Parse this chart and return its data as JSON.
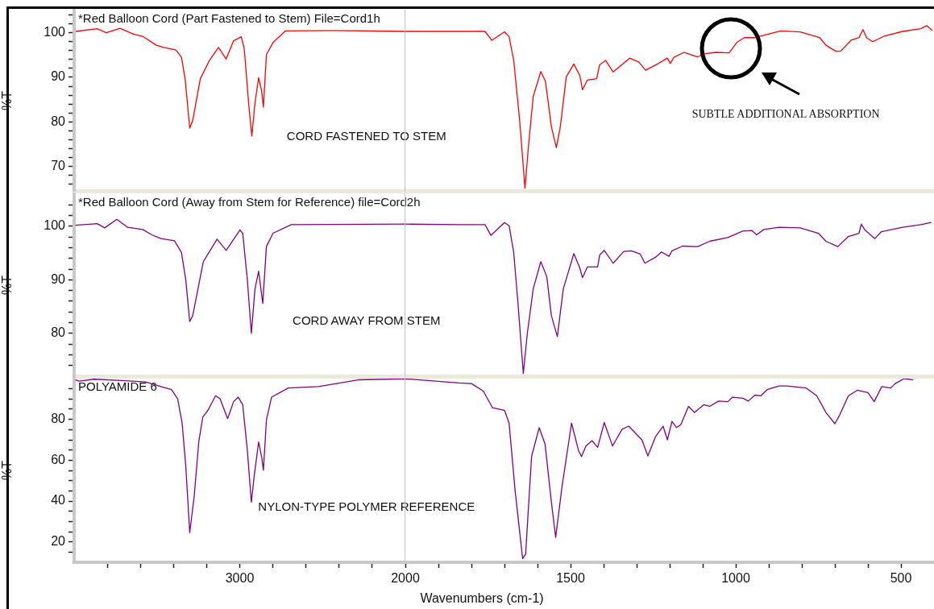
{
  "chart_data": [
    {
      "type": "line",
      "ylabel": "%T",
      "xlim": [
        4000,
        2000
      ],
      "tick_labels": "y",
      "ylim": [
        64.5,
        105
      ],
      "yticks": [
        {
          "value": 66,
          "label": null
        },
        {
          "value": 68,
          "label": null
        },
        70,
        {
          "value": 72,
          "label": null
        },
        {
          "value": 74,
          "label": null
        },
        {
          "value": 76,
          "label": null
        },
        {
          "value": 78,
          "label": null
        },
        80,
        {
          "value": 82,
          "label": null
        },
        {
          "value": 84,
          "label": null
        },
        {
          "value": 86,
          "label": null
        },
        {
          "value": 88,
          "label": null
        },
        90,
        {
          "value": 92,
          "label": null
        },
        {
          "value": 94,
          "label": null
        },
        {
          "value": 96,
          "label": null
        },
        {
          "value": 98,
          "label": null
        },
        100,
        {
          "value": 102,
          "label": null
        },
        {
          "value": 104,
          "label": null
        }
      ],
      "annotations": [
        "*Red Balloon Cord (Part Fastened to Stem) File=Cord1h",
        "CORD FASTENED TO STEM"
      ],
      "series": [
        {
          "color": "#ff0000",
          "x": [
            3990,
            3861,
            3806,
            3723,
            3641,
            3586,
            3504,
            3458,
            3385,
            3352,
            3330,
            3302,
            3284,
            3238,
            3183,
            3128,
            3082,
            3037,
            2991,
            2973,
            2945,
            2927,
            2908,
            2886,
            2868,
            2857,
            2839,
            2799,
            2725,
            2432,
            2000
          ],
          "values": [
            100.3,
            100.9,
            100,
            101,
            99.7,
            99.2,
            97.2,
            96.7,
            96.1,
            94.5,
            89.7,
            78.6,
            80.3,
            89.7,
            93.8,
            96.7,
            94.1,
            98.2,
            99.1,
            96.5,
            83.6,
            76.8,
            84.3,
            89.9,
            87,
            83.3,
            95.1,
            97.8,
            100.4,
            100.5,
            100.3
          ]
        }
      ]
    },
    {
      "type": "line",
      "xlim": [
        2000,
        400
      ],
      "ylim": [
        64.5,
        105
      ],
      "tick_labels": false,
      "annotations": [
        "SUBTLE ADDITIONAL ABSORPTION"
      ],
      "series": [
        {
          "color": "#ff0000",
          "x": [
            2000,
            1837,
            1759,
            1738,
            1700,
            1686,
            1672,
            1654,
            1638,
            1627,
            1613,
            1590,
            1576,
            1558,
            1543,
            1531,
            1513,
            1490,
            1472,
            1464,
            1449,
            1421,
            1412,
            1394,
            1371,
            1321,
            1293,
            1273,
            1234,
            1207,
            1198,
            1187,
            1157,
            1116,
            1093,
            1061,
            1020,
            997,
            974,
            942,
            864,
            805,
            746,
            727,
            696,
            682,
            650,
            627,
            615,
            604,
            586,
            549,
            495,
            440,
            422,
            405
          ],
          "values": [
            100.3,
            100.3,
            100.3,
            98.3,
            100.2,
            99.1,
            93.8,
            80.3,
            65.1,
            74.9,
            85.7,
            91.3,
            89.1,
            78.9,
            74.2,
            78.9,
            90.1,
            93,
            90.4,
            87.2,
            89.4,
            89.7,
            92.8,
            93.8,
            91.2,
            94.3,
            93.4,
            91.6,
            93.1,
            94.3,
            93.1,
            94.5,
            95.6,
            94.6,
            95.3,
            95.6,
            95.5,
            97.8,
            98.9,
            98.9,
            100.4,
            100.2,
            98.9,
            97.2,
            95.8,
            95.9,
            98.4,
            98.9,
            100.7,
            98.9,
            98,
            99.3,
            100.3,
            100.9,
            101.6,
            100.5
          ]
        }
      ]
    },
    {
      "type": "line",
      "ylabel": "%T",
      "xlim": [
        4000,
        2000
      ],
      "tick_labels": "y",
      "ylim": [
        72,
        106
      ],
      "yticks": [
        {
          "value": 74,
          "label": null
        },
        {
          "value": 76,
          "label": null
        },
        {
          "value": 78,
          "label": null
        },
        80,
        {
          "value": 82,
          "label": null
        },
        {
          "value": 84,
          "label": null
        },
        {
          "value": 86,
          "label": null
        },
        {
          "value": 88,
          "label": null
        },
        90,
        {
          "value": 92,
          "label": null
        },
        {
          "value": 94,
          "label": null
        },
        {
          "value": 96,
          "label": null
        },
        {
          "value": 98,
          "label": null
        },
        100,
        {
          "value": 102,
          "label": null
        },
        {
          "value": 104,
          "label": null
        }
      ],
      "annotations": [
        "*Red Balloon Cord (Away from Stem for Reference) file=Cord2h",
        "CORD AWAY FROM STEM"
      ],
      "series": [
        {
          "color": "#800080",
          "x": [
            3992,
            3861,
            3815,
            3742,
            3677,
            3586,
            3531,
            3476,
            3394,
            3352,
            3326,
            3302,
            3284,
            3220,
            3137,
            3082,
            2999,
            2982,
            2954,
            2930,
            2908,
            2886,
            2861,
            2839,
            2799,
            2689,
            2000
          ],
          "values": [
            100.2,
            100.5,
            99.7,
            101.3,
            99.8,
            99.4,
            98.4,
            97.7,
            97.3,
            95.1,
            90,
            82.2,
            83.3,
            93.4,
            97.6,
            95.5,
            99.3,
            98.7,
            90,
            80,
            88.3,
            91.6,
            85.6,
            96.2,
            98.7,
            100.3,
            100.4
          ]
        }
      ]
    },
    {
      "type": "line",
      "xlim": [
        2000,
        400
      ],
      "ylim": [
        72,
        106
      ],
      "tick_labels": false,
      "series": [
        {
          "color": "#800080",
          "x": [
            2000,
            1837,
            1759,
            1741,
            1700,
            1686,
            1672,
            1659,
            1643,
            1631,
            1613,
            1590,
            1572,
            1558,
            1540,
            1522,
            1490,
            1472,
            1464,
            1449,
            1418,
            1412,
            1398,
            1371,
            1339,
            1316,
            1289,
            1275,
            1243,
            1225,
            1202,
            1193,
            1161,
            1115,
            1079,
            1024,
            979,
            951,
            937,
            915,
            869,
            805,
            750,
            727,
            691,
            659,
            627,
            620,
            609,
            579,
            559,
            495,
            440,
            408
          ],
          "values": [
            100.4,
            100.3,
            100.3,
            98.3,
            100.7,
            100.1,
            95.1,
            85.5,
            72.5,
            79.9,
            88.3,
            93.4,
            90.6,
            83.3,
            79.4,
            88.3,
            94.9,
            92.2,
            90.4,
            92.4,
            92.4,
            94.6,
            95.5,
            93.1,
            95.3,
            95.4,
            94.8,
            93.1,
            94.2,
            95.2,
            94.4,
            95.4,
            96.3,
            96.2,
            97.2,
            97.9,
            99.1,
            99.2,
            98.4,
            99.4,
            99.8,
            99.7,
            98.7,
            97.2,
            96.2,
            98.1,
            98.7,
            100.4,
            99.3,
            97.7,
            99,
            99.8,
            100.3,
            100.7
          ]
        }
      ]
    },
    {
      "type": "line",
      "ylabel": "%T",
      "xlabel": "Wavenumbers (cm-1)",
      "xlim": [
        4000,
        2000
      ],
      "xticks": [
        {
          "value": 3800,
          "label": null
        },
        {
          "value": 3600,
          "label": null
        },
        {
          "value": 3400,
          "label": null
        },
        {
          "value": 3200,
          "label": null
        },
        3000,
        {
          "value": 2800,
          "label": null
        },
        {
          "value": 2600,
          "label": null
        },
        {
          "value": 2400,
          "label": null
        },
        {
          "value": 2200,
          "label": null
        },
        2000
      ],
      "ylim": [
        10,
        100
      ],
      "yticks": [
        {
          "value": 15,
          "label": null
        },
        20,
        {
          "value": 25,
          "label": null
        },
        {
          "value": 30,
          "label": null
        },
        {
          "value": 35,
          "label": null
        },
        40,
        {
          "value": 45,
          "label": null
        },
        {
          "value": 50,
          "label": null
        },
        {
          "value": 55,
          "label": null
        },
        60,
        {
          "value": 65,
          "label": null
        },
        {
          "value": 70,
          "label": null
        },
        {
          "value": 75,
          "label": null
        },
        80,
        {
          "value": 85,
          "label": null
        },
        {
          "value": 90,
          "label": null
        },
        {
          "value": 95,
          "label": null
        }
      ],
      "annotations": [
        "POLYAMIDE 6",
        "NYLON-TYPE POLYMER REFERENCE"
      ],
      "series": [
        {
          "color": "#800080",
          "x": [
            3992,
            3970,
            3879,
            3714,
            3568,
            3476,
            3412,
            3375,
            3348,
            3326,
            3302,
            3275,
            3247,
            3223,
            3192,
            3146,
            3119,
            3073,
            3037,
            3009,
            2982,
            2954,
            2930,
            2912,
            2886,
            2868,
            2857,
            2839,
            2808,
            2707,
            2524,
            2286,
            2000
          ],
          "values": [
            99.4,
            98.8,
            99.7,
            99.1,
            98.4,
            96.1,
            94.6,
            90.1,
            78.2,
            57.3,
            24.5,
            42.4,
            69.3,
            81.2,
            84.5,
            91.6,
            90.1,
            80.4,
            88.7,
            90.9,
            87.2,
            64.8,
            39.4,
            52.8,
            69,
            61.8,
            55.1,
            79.7,
            90.9,
            95.4,
            96.1,
            99.4,
            99.9
          ]
        }
      ]
    },
    {
      "type": "line",
      "xlim": [
        2000,
        400
      ],
      "xticks": [
        {
          "value": 1900,
          "label": null
        },
        {
          "value": 1800,
          "label": null
        },
        {
          "value": 1700,
          "label": null
        },
        {
          "value": 1600,
          "label": null
        },
        1500,
        {
          "value": 1400,
          "label": null
        },
        {
          "value": 1300,
          "label": null
        },
        {
          "value": 1200,
          "label": null
        },
        {
          "value": 1100,
          "label": null
        },
        1000,
        {
          "value": 900,
          "label": null
        },
        {
          "value": 800,
          "label": null
        },
        {
          "value": 700,
          "label": null
        },
        {
          "value": 600,
          "label": null
        },
        500
      ],
      "ylim": [
        10,
        100
      ],
      "tick_labels": "x",
      "series": [
        {
          "color": "#800080",
          "x": [
            2000,
            1837,
            1800,
            1764,
            1736,
            1700,
            1686,
            1668,
            1645,
            1636,
            1618,
            1595,
            1577,
            1558,
            1545,
            1526,
            1497,
            1476,
            1467,
            1453,
            1435,
            1418,
            1398,
            1373,
            1344,
            1324,
            1284,
            1266,
            1243,
            1220,
            1207,
            1193,
            1179,
            1166,
            1143,
            1125,
            1097,
            1079,
            1052,
            1024,
            1010,
            978,
            962,
            942,
            924,
            905,
            869,
            846,
            787,
            755,
            727,
            700,
            686,
            659,
            632,
            600,
            581,
            558,
            531,
            517,
            490,
            463
          ],
          "values": [
            99.9,
            97.9,
            97.6,
            93.9,
            85.7,
            84.5,
            78.2,
            45.4,
            11.8,
            14,
            61.8,
            76,
            67.8,
            39.4,
            22.2,
            46.9,
            78.2,
            64.8,
            61.8,
            67,
            69.6,
            66.3,
            78.5,
            67,
            75.2,
            76.7,
            70,
            62.1,
            71.5,
            76.7,
            70,
            79,
            76,
            77.5,
            86.4,
            83.4,
            87.2,
            86.4,
            89,
            88.7,
            90.9,
            90.4,
            89,
            91.9,
            91.6,
            94.6,
            96.4,
            96.4,
            95.4,
            91.6,
            83.4,
            77.9,
            82,
            91.6,
            94.3,
            93.1,
            88.7,
            96.1,
            95.4,
            97.6,
            100,
            99.4
          ]
        }
      ]
    }
  ]
}
